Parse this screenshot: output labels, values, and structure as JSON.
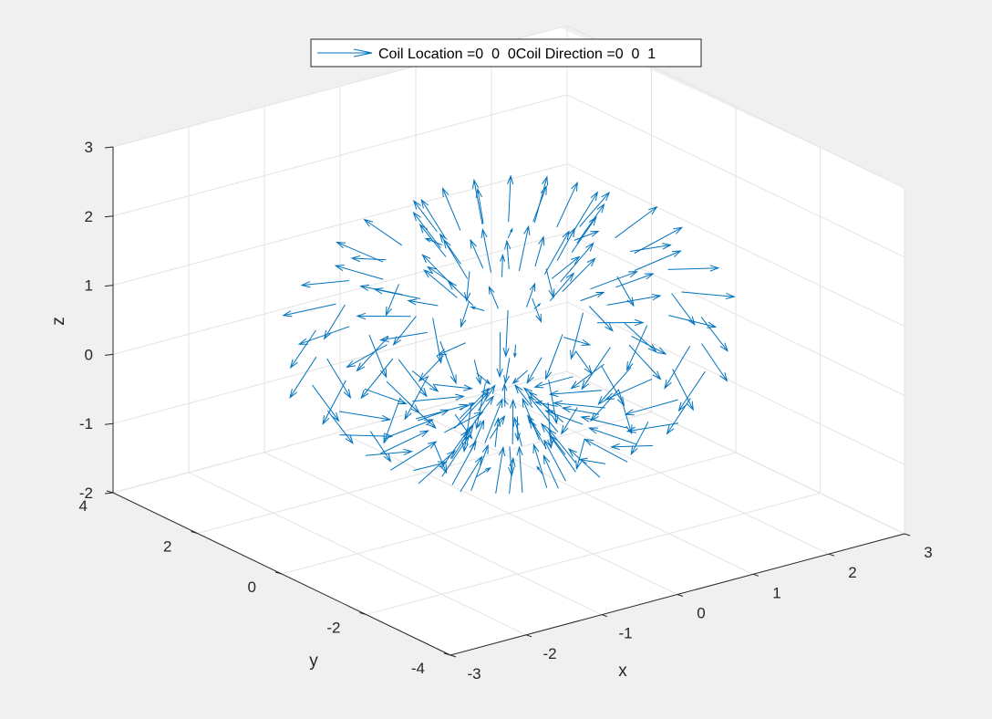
{
  "colors": {
    "figure_background": "#f0f0f0",
    "axes_background": "#ffffff",
    "axis_line": "#262626",
    "grid": "#e3e3e3",
    "series": "#0072bd"
  },
  "chart_data": {
    "type": "quiver3",
    "view": {
      "azimuth": -37.5,
      "elevation": 30
    },
    "xlabel": "x",
    "ylabel": "y",
    "zlabel": "z",
    "xlim": [
      -3,
      3
    ],
    "ylim": [
      -4,
      4
    ],
    "zlim": [
      -2,
      3
    ],
    "xticks": [
      "-3",
      "-2",
      "-1",
      "0",
      "1",
      "2",
      "3"
    ],
    "yticks": [
      "-4",
      "-2",
      "0",
      "2",
      "4"
    ],
    "zticks": [
      "-2",
      "-1",
      "0",
      "1",
      "2",
      "3"
    ],
    "grid": true,
    "box": "open",
    "legend": {
      "placement": "top-center",
      "entries": [
        "Coil Location =0  0  0Coil Direction =0  0  1"
      ]
    },
    "series": [
      {
        "name": "Coil Location =0  0  0Coil Direction =0  0  1",
        "kind": "magnetic dipole field",
        "coil_location": [
          0,
          0,
          0
        ],
        "coil_direction": [
          0,
          0,
          1
        ],
        "field_shape": "vectors point upward and outward above the coil, downward through the middle (z from about 0 to -1) and radially outward/inward around the lower ring"
      }
    ]
  }
}
